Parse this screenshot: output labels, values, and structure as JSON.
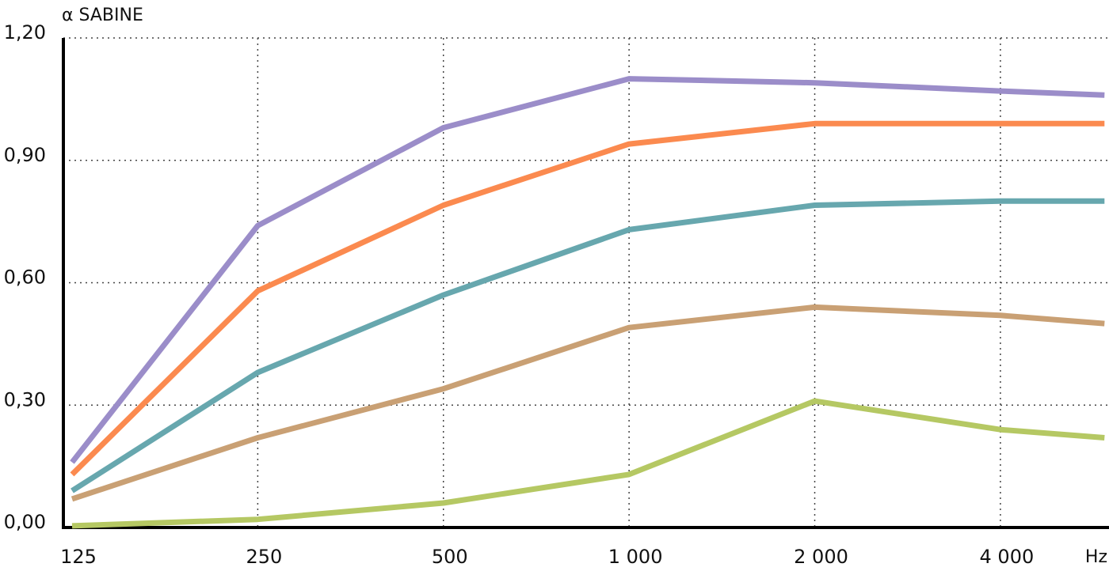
{
  "chart_data": {
    "type": "line",
    "y_label": "α SABINE",
    "x_label": "Hz",
    "x": [
      125,
      250,
      500,
      1000,
      2000,
      4000,
      5900
    ],
    "xscale": "log",
    "xlim": [
      121,
      6000
    ],
    "xticks": [
      125,
      250,
      500,
      {
        "value": 1000,
        "label": "1 000"
      },
      {
        "value": 2000,
        "label": "2 000"
      },
      {
        "value": 4000,
        "label": "4 000"
      }
    ],
    "ylim": [
      0,
      1.2
    ],
    "yticks": [
      {
        "value": 0,
        "label": "0,00"
      },
      {
        "value": 0.3,
        "label": "0,30"
      },
      {
        "value": 0.6,
        "label": "0,60"
      },
      {
        "value": 0.9,
        "label": "0,90"
      },
      {
        "value": 1.2,
        "label": "1,20"
      }
    ],
    "grid": true,
    "series": [
      {
        "color": "#9b8dc9",
        "values": [
          0.16,
          0.74,
          0.98,
          1.1,
          1.09,
          1.07,
          1.06
        ]
      },
      {
        "color": "#fb8a4f",
        "values": [
          0.13,
          0.58,
          0.79,
          0.94,
          0.99,
          0.99,
          0.99
        ]
      },
      {
        "color": "#67a7ae",
        "values": [
          0.09,
          0.38,
          0.57,
          0.73,
          0.79,
          0.8,
          0.8
        ]
      },
      {
        "color": "#c9a074",
        "values": [
          0.07,
          0.22,
          0.34,
          0.49,
          0.54,
          0.52,
          0.5
        ]
      },
      {
        "color": "#b5c863",
        "values": [
          0.004,
          0.02,
          0.06,
          0.13,
          0.31,
          0.24,
          0.22
        ]
      }
    ]
  }
}
